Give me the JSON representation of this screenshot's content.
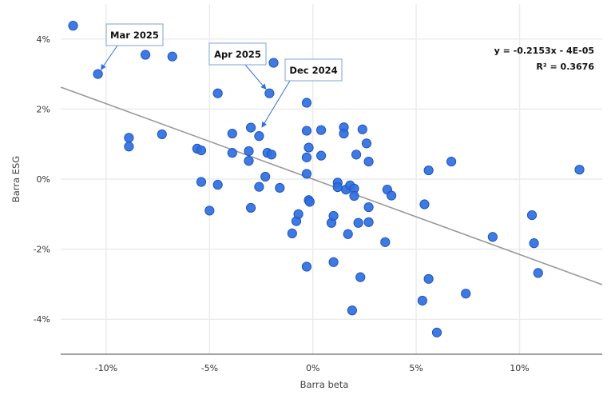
{
  "chart_data": {
    "type": "scatter",
    "xlabel": "Barra beta",
    "ylabel": "Barra ESG",
    "xlim": [
      -12.2,
      14.0
    ],
    "ylim": [
      -5.0,
      5.0
    ],
    "x_ticks": [
      -10,
      -5,
      0,
      5,
      10
    ],
    "x_tick_labels": [
      "-10%",
      "-5%",
      "0%",
      "5%",
      "10%"
    ],
    "y_ticks": [
      -4,
      -2,
      0,
      2,
      4
    ],
    "y_tick_labels": [
      "-4%",
      "-2%",
      "0%",
      "2%",
      "4%"
    ],
    "grid": true,
    "colors": {
      "point": "#2f6fe0",
      "point_edge": "#1f55c0",
      "trendline": "#9a9a9a",
      "grid": "#ececec",
      "annotation": "#2f6fe0"
    },
    "trendline": {
      "slope": -0.2153,
      "intercept": -4e-05,
      "equation": "y = -0.2153x - 4E-05",
      "r_squared": "R² = 0.3676"
    },
    "annotations": [
      {
        "label": "Mar 2025",
        "point": [
          -10.4,
          3.0
        ]
      },
      {
        "label": "Apr 2025",
        "point": [
          -2.1,
          2.45
        ]
      },
      {
        "label": "Dec 2024",
        "point": [
          -2.6,
          1.35
        ]
      }
    ],
    "points": [
      [
        -11.6,
        4.38
      ],
      [
        -10.4,
        3.0
      ],
      [
        -8.1,
        3.55
      ],
      [
        -6.8,
        3.5
      ],
      [
        -4.6,
        2.45
      ],
      [
        -2.1,
        2.45
      ],
      [
        -1.9,
        3.32
      ],
      [
        -8.9,
        1.18
      ],
      [
        -8.9,
        0.93
      ],
      [
        -7.3,
        1.28
      ],
      [
        -5.6,
        0.87
      ],
      [
        -5.4,
        0.82
      ],
      [
        -5.4,
        -0.08
      ],
      [
        -4.6,
        -0.16
      ],
      [
        -5.0,
        -0.9
      ],
      [
        -3.9,
        1.3
      ],
      [
        -3.9,
        0.75
      ],
      [
        -3.1,
        0.8
      ],
      [
        -3.0,
        1.47
      ],
      [
        -3.1,
        0.52
      ],
      [
        -2.6,
        1.23
      ],
      [
        -2.6,
        -0.22
      ],
      [
        -2.3,
        0.07
      ],
      [
        -2.2,
        0.75
      ],
      [
        -2.0,
        0.7
      ],
      [
        -1.6,
        -0.25
      ],
      [
        -3.0,
        -0.82
      ],
      [
        -1.0,
        -1.55
      ],
      [
        -0.8,
        -1.2
      ],
      [
        -0.7,
        -1.0
      ],
      [
        -0.3,
        2.18
      ],
      [
        -0.3,
        1.38
      ],
      [
        -0.2,
        0.9
      ],
      [
        -0.3,
        0.62
      ],
      [
        -0.3,
        0.15
      ],
      [
        -0.2,
        -0.6
      ],
      [
        -0.15,
        -0.65
      ],
      [
        -0.3,
        -2.5
      ],
      [
        0.4,
        1.4
      ],
      [
        0.4,
        0.67
      ],
      [
        0.9,
        -1.25
      ],
      [
        1.0,
        -1.05
      ],
      [
        1.0,
        -2.37
      ],
      [
        1.2,
        -0.1
      ],
      [
        1.2,
        -0.23
      ],
      [
        1.5,
        1.48
      ],
      [
        1.5,
        1.3
      ],
      [
        1.6,
        -0.3
      ],
      [
        1.7,
        -1.57
      ],
      [
        1.8,
        -0.18
      ],
      [
        2.0,
        -0.27
      ],
      [
        2.0,
        -0.48
      ],
      [
        2.1,
        0.7
      ],
      [
        2.2,
        -1.25
      ],
      [
        2.3,
        -2.8
      ],
      [
        2.4,
        1.42
      ],
      [
        2.6,
        1.02
      ],
      [
        2.7,
        0.5
      ],
      [
        2.7,
        -0.8
      ],
      [
        2.7,
        -1.23
      ],
      [
        1.9,
        -3.75
      ],
      [
        3.5,
        -1.8
      ],
      [
        3.6,
        -0.3
      ],
      [
        3.8,
        -0.47
      ],
      [
        5.4,
        -0.72
      ],
      [
        5.6,
        0.25
      ],
      [
        6.7,
        0.5
      ],
      [
        5.6,
        -2.85
      ],
      [
        5.3,
        -3.47
      ],
      [
        6.0,
        -4.38
      ],
      [
        7.4,
        -3.27
      ],
      [
        8.7,
        -1.65
      ],
      [
        10.6,
        -1.03
      ],
      [
        10.7,
        -1.83
      ],
      [
        10.9,
        -2.68
      ],
      [
        12.9,
        0.27
      ]
    ]
  }
}
